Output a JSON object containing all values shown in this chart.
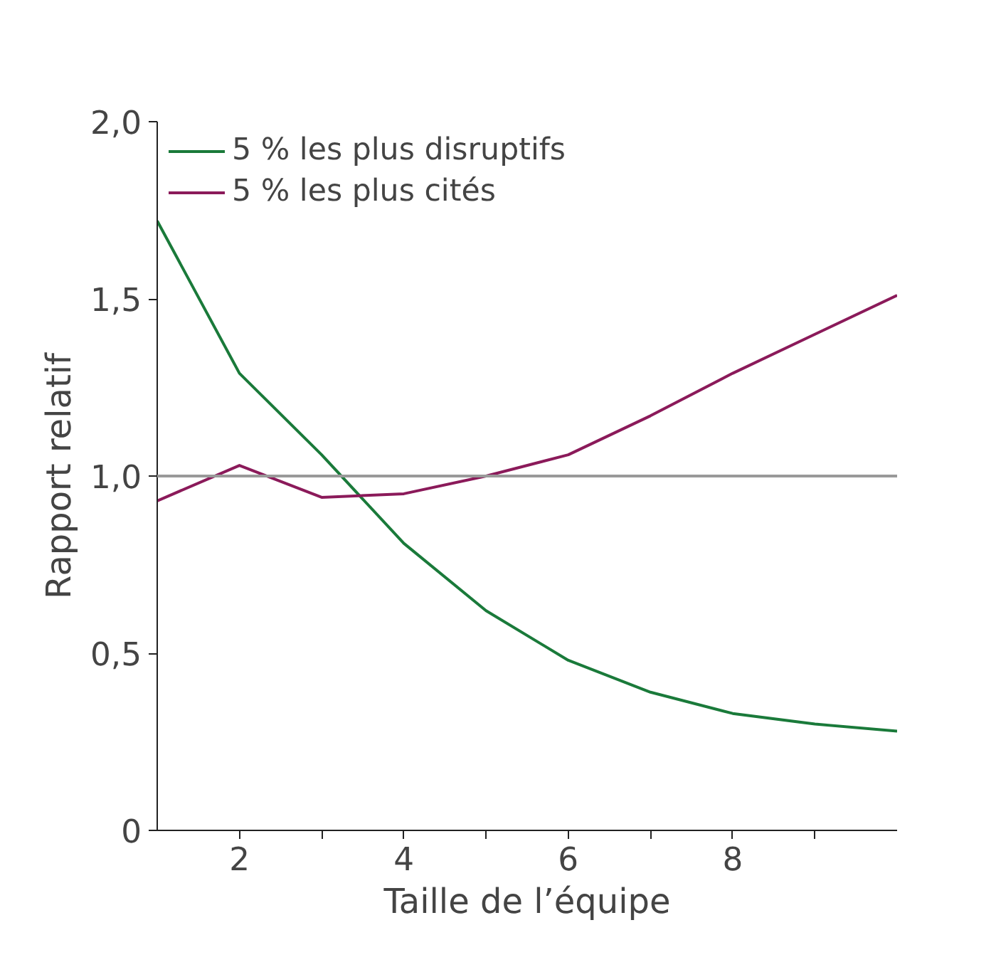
{
  "chart_data": {
    "type": "line",
    "xlabel": "Taille de l’équipe",
    "ylabel": "Rapport relatif",
    "x": [
      1,
      2,
      3,
      4,
      5,
      6,
      7,
      8,
      9,
      10
    ],
    "series": [
      {
        "name": "5 % les plus disruptifs",
        "color": "#1a7a3a",
        "values": [
          1.72,
          1.29,
          1.06,
          0.81,
          0.62,
          0.48,
          0.39,
          0.33,
          0.3,
          0.28
        ]
      },
      {
        "name": "5 % les plus cités",
        "color": "#8b1a5a",
        "values": [
          0.93,
          1.03,
          0.94,
          0.95,
          1.0,
          1.06,
          1.17,
          1.29,
          1.4,
          1.51
        ]
      }
    ],
    "xlim": [
      1,
      10
    ],
    "xticks": [
      2,
      {
        "value": 3,
        "label": null
      },
      4,
      {
        "value": 5,
        "label": null
      },
      6,
      {
        "value": 7,
        "label": null
      },
      8,
      {
        "value": 9,
        "label": null
      }
    ],
    "ylim": [
      0,
      2.0
    ],
    "yticks": [
      {
        "value": 0,
        "label": "0"
      },
      {
        "value": 0.5,
        "label": "0,5"
      },
      {
        "value": 1.0,
        "label": "1,0"
      },
      {
        "value": 1.5,
        "label": "1,5"
      },
      {
        "value": 2.0,
        "label": "2,0"
      }
    ],
    "ref_lines": [
      {
        "axis": "y",
        "value": 1.0,
        "color": "#999999"
      }
    ],
    "grid": false,
    "legend": "top left",
    "marker": "none",
    "line_style": "solid"
  }
}
